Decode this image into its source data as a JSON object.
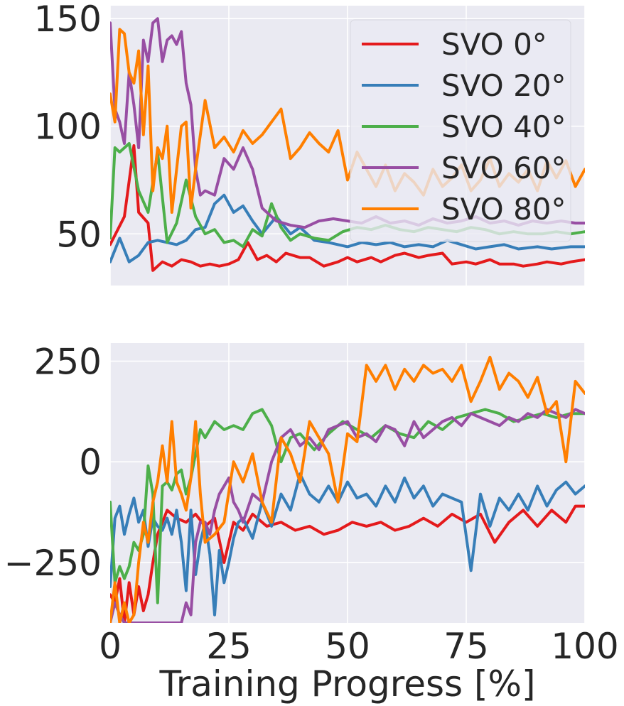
{
  "chart_data": [
    {
      "type": "line",
      "panel": "top",
      "title": "",
      "xlabel": "",
      "ylabel": "",
      "xlim": [
        0,
        100
      ],
      "ylim": [
        26,
        156
      ],
      "xticks": [
        0,
        25,
        50,
        75,
        100
      ],
      "yticks": [
        50,
        100,
        150
      ],
      "ytick_labels": [
        "50",
        "100",
        "150"
      ],
      "grid": true,
      "legend": "top-right",
      "series": [
        {
          "name": "SVO 0°",
          "color": "#e41a1c",
          "x": [
            0,
            3,
            5,
            6,
            8,
            9,
            11,
            13,
            15,
            17,
            19,
            21,
            23,
            25,
            27,
            29,
            31,
            33,
            35,
            37,
            40,
            42,
            45,
            48,
            50,
            52,
            55,
            57,
            60,
            62,
            65,
            67,
            70,
            72,
            75,
            77,
            80,
            82,
            85,
            87,
            90,
            92,
            95,
            97,
            100
          ],
          "y": [
            45,
            58,
            91,
            60,
            55,
            33,
            37,
            35,
            38,
            37,
            35,
            36,
            35,
            36,
            38,
            46,
            38,
            40,
            37,
            41,
            39,
            39,
            35,
            37,
            39,
            37,
            39,
            37,
            40,
            41,
            39,
            40,
            41,
            36,
            37,
            36,
            38,
            36,
            36,
            35,
            36,
            37,
            36,
            37,
            38
          ]
        },
        {
          "name": "SVO 20°",
          "color": "#377eb8",
          "x": [
            0,
            2,
            4,
            6,
            8,
            10,
            12,
            14,
            16,
            18,
            20,
            22,
            24,
            26,
            28,
            30,
            32,
            35,
            38,
            40,
            43,
            46,
            50,
            53,
            56,
            59,
            62,
            65,
            68,
            71,
            74,
            77,
            80,
            83,
            86,
            90,
            93,
            97,
            100
          ],
          "y": [
            37,
            48,
            37,
            40,
            46,
            47,
            46,
            45,
            47,
            52,
            53,
            64,
            68,
            60,
            63,
            56,
            50,
            58,
            50,
            53,
            47,
            46,
            44,
            46,
            45,
            46,
            44,
            45,
            44,
            47,
            45,
            43,
            44,
            45,
            43,
            44,
            43,
            44,
            44
          ]
        },
        {
          "name": "SVO 40°",
          "color": "#4daf4a",
          "x": [
            0,
            1,
            2,
            4,
            6,
            8,
            10,
            12,
            14,
            16,
            18,
            20,
            22,
            24,
            26,
            28,
            30,
            32,
            34,
            36,
            38,
            40,
            43,
            46,
            49,
            52,
            55,
            58,
            61,
            64,
            67,
            70,
            73,
            76,
            79,
            82,
            85,
            88,
            91,
            94,
            97,
            100
          ],
          "y": [
            48,
            90,
            88,
            92,
            70,
            60,
            88,
            46,
            55,
            75,
            58,
            50,
            52,
            46,
            47,
            44,
            52,
            49,
            64,
            53,
            47,
            50,
            48,
            47,
            51,
            53,
            52,
            54,
            52,
            51,
            53,
            52,
            51,
            53,
            52,
            50,
            51,
            50,
            50,
            51,
            50,
            51
          ]
        },
        {
          "name": "SVO 60°",
          "color": "#984ea3",
          "x": [
            0,
            1,
            2,
            3,
            4,
            5,
            6,
            7,
            8,
            9,
            10,
            11,
            12,
            13,
            14,
            15,
            16,
            17,
            18,
            19,
            20,
            22,
            24,
            26,
            28,
            30,
            32,
            35,
            38,
            41,
            44,
            47,
            50,
            53,
            56,
            59,
            62,
            65,
            68,
            71,
            74,
            77,
            80,
            83,
            86,
            89,
            92,
            95,
            98,
            100
          ],
          "y": [
            148,
            108,
            102,
            92,
            125,
            110,
            90,
            140,
            130,
            148,
            150,
            130,
            140,
            142,
            138,
            144,
            120,
            110,
            80,
            68,
            70,
            68,
            85,
            80,
            90,
            80,
            62,
            56,
            54,
            53,
            56,
            57,
            56,
            55,
            58,
            55,
            56,
            54,
            57,
            55,
            56,
            58,
            55,
            56,
            54,
            56,
            55,
            56,
            55,
            55
          ]
        },
        {
          "name": "SVO 80°",
          "color": "#ff7f00",
          "x": [
            0,
            1,
            2,
            3,
            4,
            5,
            6,
            7,
            8,
            9,
            10,
            11,
            12,
            13,
            14,
            15,
            16,
            17,
            18,
            20,
            22,
            24,
            26,
            28,
            30,
            32,
            34,
            36,
            38,
            40,
            42,
            44,
            46,
            48,
            50,
            52,
            54,
            56,
            58,
            60,
            62,
            64,
            66,
            68,
            70,
            72,
            74,
            76,
            78,
            80,
            82,
            84,
            86,
            88,
            90,
            92,
            94,
            96,
            98,
            100
          ],
          "y": [
            115,
            102,
            145,
            143,
            125,
            120,
            135,
            96,
            128,
            70,
            90,
            85,
            100,
            60,
            80,
            100,
            102,
            62,
            80,
            112,
            90,
            95,
            88,
            98,
            92,
            96,
            102,
            108,
            85,
            90,
            97,
            92,
            88,
            98,
            75,
            88,
            80,
            72,
            82,
            70,
            78,
            74,
            68,
            80,
            72,
            76,
            82,
            70,
            75,
            85,
            72,
            78,
            74,
            80,
            70,
            84,
            76,
            84,
            72,
            80
          ]
        }
      ]
    },
    {
      "type": "line",
      "panel": "bottom",
      "title": "",
      "xlabel": "Training Progress [%]",
      "ylabel": "",
      "xlim": [
        0,
        100
      ],
      "ylim": [
        -400,
        295
      ],
      "xticks": [
        0,
        25,
        50,
        75,
        100
      ],
      "xtick_labels": [
        "0",
        "25",
        "50",
        "75",
        "100"
      ],
      "yticks": [
        -250,
        0,
        250
      ],
      "ytick_labels": [
        "−250",
        "0",
        "250"
      ],
      "grid": true,
      "series": [
        {
          "name": "SVO 0°",
          "color": "#e41a1c",
          "x": [
            0,
            1,
            2,
            3,
            4,
            5,
            6,
            7,
            8,
            9,
            10,
            12,
            14,
            16,
            18,
            20,
            22,
            24,
            26,
            28,
            30,
            33,
            36,
            39,
            42,
            45,
            48,
            51,
            54,
            57,
            60,
            63,
            66,
            69,
            72,
            75,
            78,
            81,
            84,
            87,
            90,
            93,
            96,
            98,
            100
          ],
          "y": [
            -330,
            -350,
            -290,
            -400,
            -300,
            -380,
            -310,
            -370,
            -330,
            -250,
            -180,
            -120,
            -140,
            -150,
            -130,
            -160,
            -140,
            -250,
            -150,
            -170,
            -130,
            -160,
            -150,
            -170,
            -160,
            -180,
            -170,
            -150,
            -160,
            -150,
            -170,
            -160,
            -140,
            -160,
            -130,
            -150,
            -130,
            -200,
            -150,
            -120,
            -160,
            -120,
            -150,
            -110,
            -110
          ]
        },
        {
          "name": "SVO 20°",
          "color": "#377eb8",
          "x": [
            0,
            1,
            2,
            3,
            4,
            5,
            6,
            7,
            8,
            9,
            10,
            11,
            12,
            13,
            14,
            15,
            16,
            17,
            18,
            19,
            20,
            21,
            22,
            23,
            24,
            25,
            26,
            27,
            28,
            30,
            32,
            34,
            36,
            38,
            40,
            42,
            44,
            46,
            48,
            50,
            52,
            54,
            56,
            58,
            60,
            62,
            64,
            66,
            68,
            70,
            72,
            74,
            76,
            78,
            80,
            82,
            84,
            86,
            88,
            90,
            92,
            94,
            96,
            98,
            100
          ],
          "y": [
            -310,
            -140,
            -110,
            -180,
            -130,
            -90,
            -150,
            -120,
            -210,
            -140,
            -160,
            -170,
            -140,
            -180,
            -120,
            -200,
            -320,
            -120,
            -280,
            -200,
            -150,
            -230,
            -380,
            -220,
            -300,
            -250,
            -190,
            -150,
            -140,
            -190,
            -100,
            -160,
            -80,
            -120,
            -30,
            -80,
            -100,
            -60,
            -100,
            -50,
            -90,
            -80,
            -110,
            -60,
            -100,
            -40,
            -90,
            -60,
            -110,
            -80,
            -90,
            -100,
            -270,
            -80,
            -160,
            -90,
            -120,
            -80,
            -120,
            -60,
            -110,
            -70,
            -50,
            -80,
            -60
          ]
        },
        {
          "name": "SVO 40°",
          "color": "#4daf4a",
          "x": [
            0,
            1,
            2,
            3,
            4,
            5,
            6,
            7,
            8,
            9,
            10,
            11,
            12,
            13,
            14,
            15,
            16,
            17,
            18,
            19,
            20,
            22,
            24,
            26,
            28,
            30,
            32,
            34,
            36,
            38,
            40,
            43,
            46,
            49,
            52,
            55,
            58,
            61,
            64,
            67,
            70,
            73,
            76,
            79,
            82,
            85,
            88,
            91,
            94,
            97,
            100
          ],
          "y": [
            -100,
            -300,
            -260,
            -290,
            -260,
            -200,
            -220,
            -180,
            -10,
            -80,
            -350,
            -60,
            -50,
            -70,
            -30,
            -20,
            -80,
            -40,
            20,
            80,
            60,
            100,
            80,
            90,
            80,
            120,
            130,
            90,
            0,
            60,
            70,
            30,
            70,
            100,
            80,
            60,
            90,
            70,
            60,
            100,
            80,
            110,
            120,
            130,
            120,
            100,
            110,
            120,
            110,
            120,
            120
          ]
        },
        {
          "name": "SVO 60°",
          "color": "#984ea3",
          "x": [
            0,
            1,
            2,
            3,
            4,
            5,
            6,
            7,
            8,
            9,
            10,
            11,
            12,
            13,
            14,
            15,
            16,
            17,
            18,
            19,
            20,
            21,
            22,
            23,
            24,
            25,
            26,
            27,
            28,
            30,
            32,
            34,
            36,
            38,
            40,
            42,
            44,
            46,
            48,
            50,
            52,
            54,
            56,
            58,
            60,
            62,
            64,
            66,
            68,
            70,
            72,
            74,
            76,
            78,
            80,
            82,
            84,
            86,
            88,
            90,
            92,
            94,
            96,
            98,
            100
          ],
          "y": [
            -400,
            -350,
            -380,
            -400,
            -400,
            -400,
            -400,
            -400,
            -400,
            -400,
            -400,
            -400,
            -400,
            -400,
            -400,
            -400,
            -350,
            -380,
            -200,
            -150,
            -150,
            -180,
            -120,
            -80,
            -60,
            -40,
            -100,
            -120,
            -150,
            -80,
            -100,
            0,
            60,
            80,
            40,
            60,
            30,
            80,
            90,
            100,
            60,
            70,
            50,
            90,
            80,
            40,
            100,
            60,
            80,
            100,
            110,
            90,
            120,
            110,
            100,
            90,
            110,
            100,
            120,
            110,
            130,
            120,
            110,
            130,
            120
          ]
        },
        {
          "name": "SVO 80°",
          "color": "#ff7f00",
          "x": [
            0,
            1,
            2,
            3,
            4,
            5,
            6,
            7,
            8,
            9,
            10,
            11,
            12,
            13,
            14,
            15,
            16,
            17,
            18,
            19,
            20,
            22,
            24,
            26,
            28,
            30,
            32,
            34,
            36,
            38,
            40,
            42,
            44,
            46,
            48,
            50,
            52,
            54,
            56,
            58,
            60,
            62,
            64,
            66,
            68,
            70,
            72,
            74,
            76,
            78,
            80,
            82,
            84,
            86,
            88,
            90,
            92,
            94,
            96,
            98,
            100
          ],
          "y": [
            -400,
            -300,
            -400,
            -350,
            -400,
            -380,
            -250,
            -150,
            -200,
            -100,
            -50,
            40,
            -50,
            100,
            -50,
            -80,
            -120,
            -40,
            100,
            -80,
            -200,
            -180,
            -150,
            0,
            -50,
            20,
            -100,
            -150,
            60,
            20,
            -50,
            100,
            60,
            20,
            -100,
            70,
            50,
            240,
            200,
            240,
            180,
            230,
            200,
            240,
            220,
            230,
            200,
            240,
            150,
            200,
            260,
            180,
            220,
            200,
            160,
            210,
            120,
            150,
            0,
            200,
            170
          ]
        }
      ]
    }
  ]
}
